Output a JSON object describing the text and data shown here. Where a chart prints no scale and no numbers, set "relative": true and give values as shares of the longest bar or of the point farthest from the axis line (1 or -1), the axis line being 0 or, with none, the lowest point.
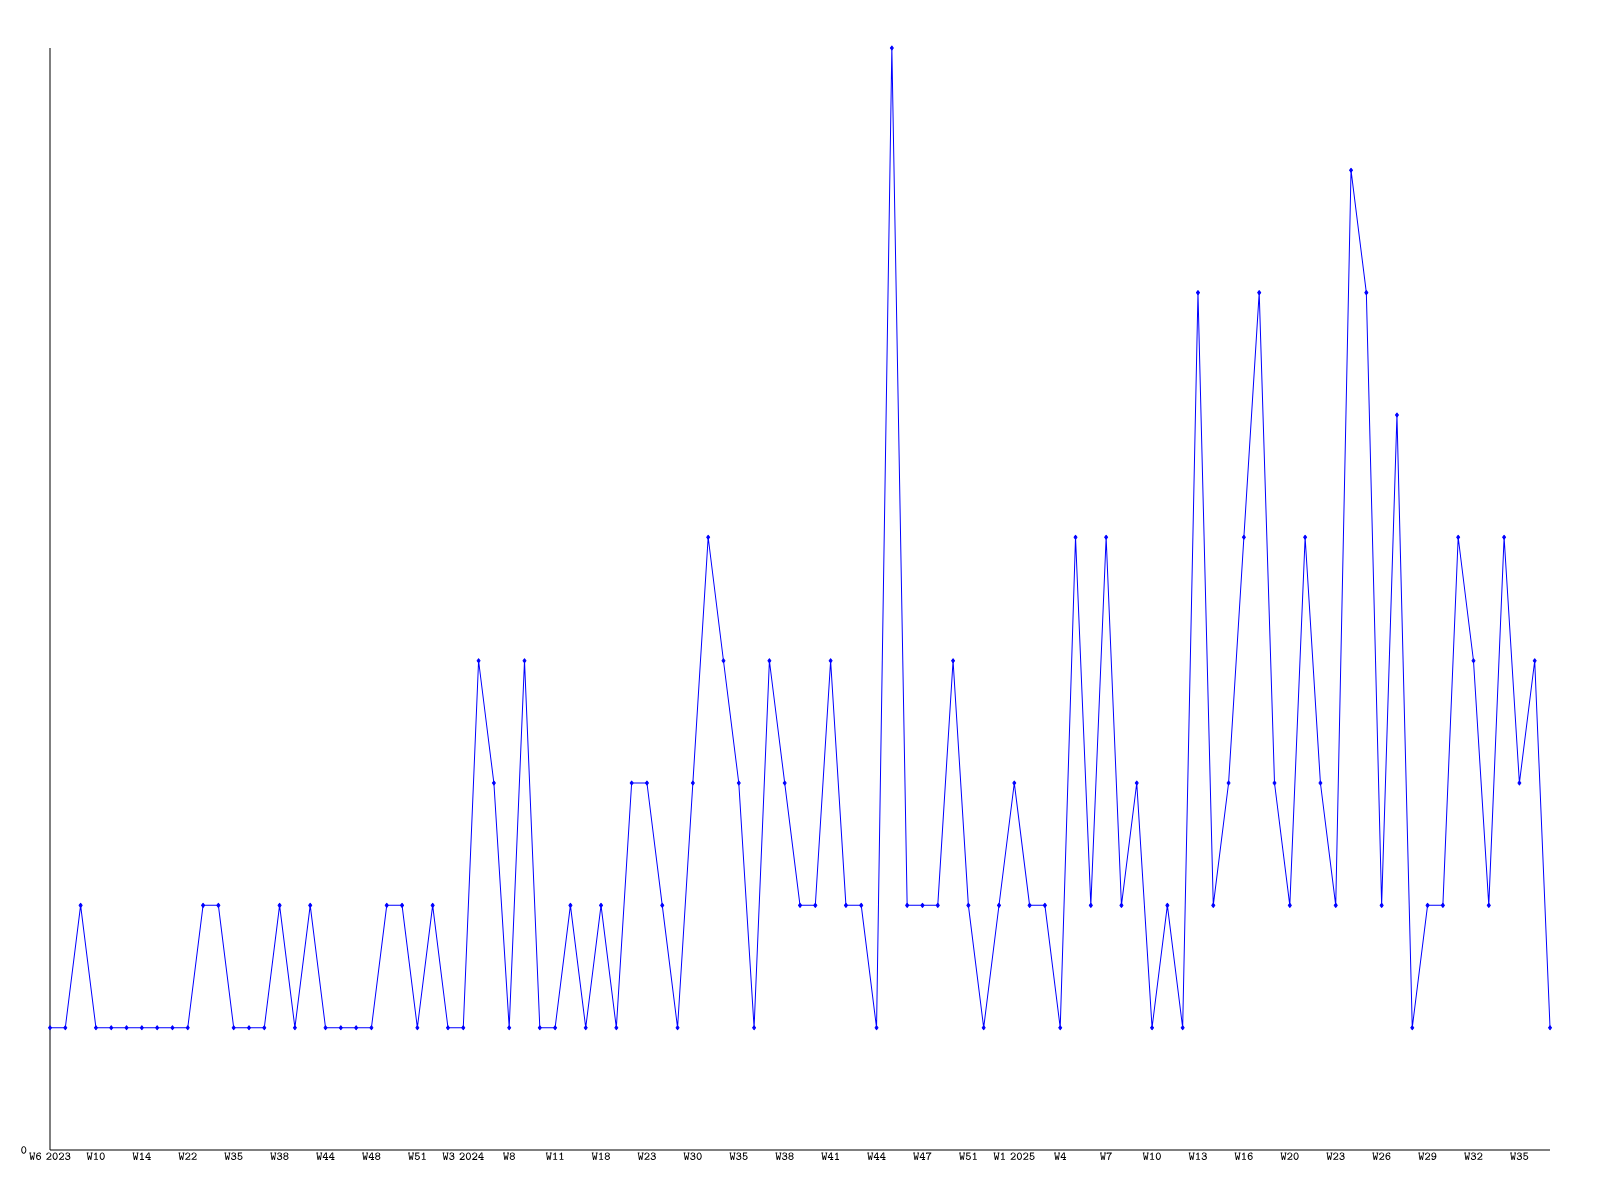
{
  "chart_data": {
    "type": "line",
    "relative": true,
    "color": "#0000ff",
    "marker": "diamond",
    "line_style": "solid",
    "grid": false,
    "categories": [
      "W6 2023",
      null,
      null,
      "W10",
      null,
      null,
      "W14",
      null,
      null,
      "W22",
      null,
      null,
      "W35",
      null,
      null,
      "W38",
      null,
      null,
      "W44",
      null,
      null,
      "W48",
      null,
      null,
      "W51",
      null,
      null,
      "W3 2024",
      null,
      null,
      "W8",
      null,
      null,
      "W11",
      null,
      null,
      "W18",
      null,
      null,
      "W23",
      null,
      null,
      "W30",
      null,
      null,
      "W35",
      null,
      null,
      "W38",
      null,
      null,
      "W41",
      null,
      null,
      "W44",
      null,
      null,
      "W47",
      null,
      null,
      "W51",
      null,
      null,
      "W1 2025",
      null,
      null,
      "W4",
      null,
      null,
      "W7",
      null,
      null,
      "W10",
      null,
      null,
      "W13",
      null,
      null,
      "W16",
      null,
      null,
      "W20",
      null,
      null,
      "W23",
      null,
      null,
      "W26",
      null,
      null,
      "W29",
      null,
      null,
      "W32",
      null,
      null,
      "W35",
      null,
      null
    ],
    "values": [
      0.111,
      0.111,
      0.222,
      0.111,
      0.111,
      0.111,
      0.111,
      0.111,
      0.111,
      0.111,
      0.222,
      0.222,
      0.111,
      0.111,
      0.111,
      0.222,
      0.111,
      0.222,
      0.111,
      0.111,
      0.111,
      0.111,
      0.222,
      0.222,
      0.111,
      0.222,
      0.111,
      0.111,
      0.444,
      0.333,
      0.111,
      0.444,
      0.111,
      0.111,
      0.222,
      0.111,
      0.222,
      0.111,
      0.333,
      0.333,
      0.222,
      0.111,
      0.333,
      0.556,
      0.444,
      0.333,
      0.111,
      0.444,
      0.333,
      0.222,
      0.222,
      0.444,
      0.222,
      0.222,
      0.111,
      1,
      0.222,
      0.222,
      0.222,
      0.444,
      0.222,
      0.111,
      0.222,
      0.333,
      0.222,
      0.222,
      0.111,
      0.556,
      0.222,
      0.556,
      0.222,
      0.333,
      0.111,
      0.222,
      0.111,
      0.778,
      0.222,
      0.333,
      0.556,
      0.778,
      0.333,
      0.222,
      0.556,
      0.333,
      0.222,
      0.889,
      0.778,
      0.222,
      0.667,
      0.111,
      0.222,
      0.222,
      0.556,
      0.444,
      0.222,
      0.556,
      0.333,
      0.444,
      0.111
    ],
    "annotations": [
      "0"
    ]
  }
}
